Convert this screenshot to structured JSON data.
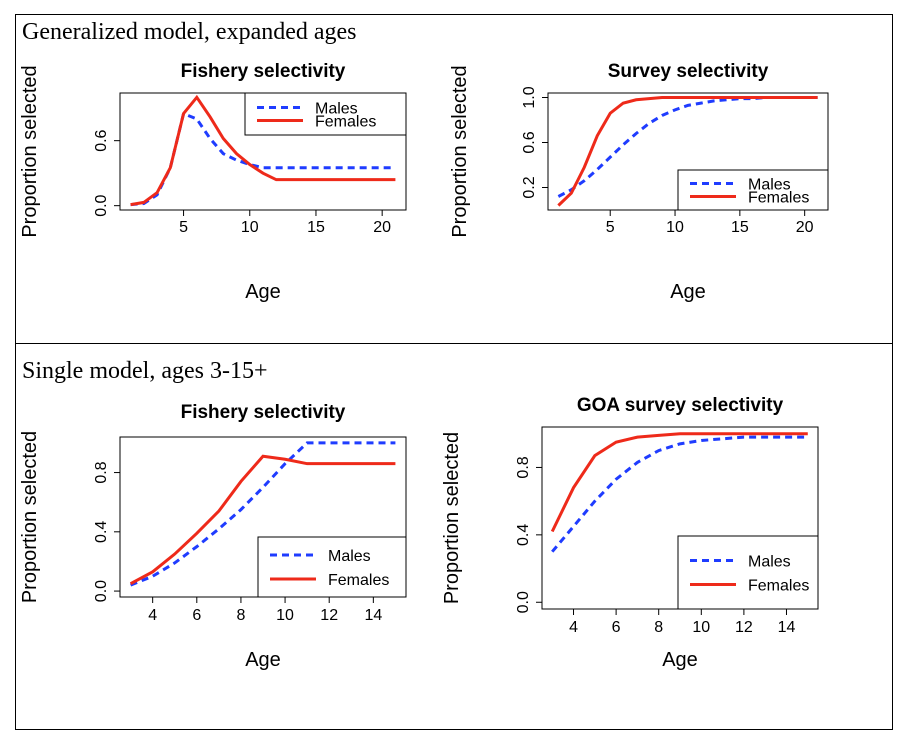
{
  "headings": [
    "Generalized model, expanded ages",
    "Single model, ages 3-15+"
  ],
  "chart_data": [
    {
      "type": "line",
      "title": "Fishery selectivity",
      "xlabel": "Age",
      "ylabel": "Proportion selected",
      "x": [
        1,
        2,
        3,
        4,
        5,
        6,
        7,
        8,
        9,
        10,
        11,
        12,
        13,
        14,
        15,
        16,
        17,
        18,
        19,
        20,
        21
      ],
      "series": [
        {
          "name": "Males",
          "color": "#1f3cff",
          "dashed": true,
          "values": [
            0.01,
            0.02,
            0.1,
            0.35,
            0.85,
            0.8,
            0.62,
            0.48,
            0.42,
            0.38,
            0.35,
            0.35,
            0.35,
            0.35,
            0.35,
            0.35,
            0.35,
            0.35,
            0.35,
            0.35,
            0.35
          ]
        },
        {
          "name": "Females",
          "color": "#ee2a1a",
          "dashed": false,
          "values": [
            0.01,
            0.03,
            0.12,
            0.35,
            0.85,
            1.0,
            0.82,
            0.62,
            0.48,
            0.38,
            0.3,
            0.24,
            0.24,
            0.24,
            0.24,
            0.24,
            0.24,
            0.24,
            0.24,
            0.24,
            0.24
          ]
        }
      ],
      "xlim": [
        0.2,
        21.8
      ],
      "xticks": [
        5,
        10,
        15,
        20
      ],
      "ylim": [
        -0.04,
        1.04
      ],
      "yticks": [
        {
          "value": 0,
          "label": "0.0"
        },
        0.6
      ],
      "legend": "topright"
    },
    {
      "type": "line",
      "title": "Survey selectivity",
      "xlabel": "Age",
      "ylabel": "Proportion selected",
      "x": [
        1,
        2,
        3,
        4,
        5,
        6,
        7,
        8,
        9,
        10,
        11,
        12,
        13,
        14,
        15,
        16,
        17,
        18,
        19,
        20,
        21
      ],
      "series": [
        {
          "name": "Males",
          "color": "#1f3cff",
          "dashed": true,
          "values": [
            0.12,
            0.18,
            0.26,
            0.36,
            0.47,
            0.58,
            0.68,
            0.77,
            0.84,
            0.89,
            0.93,
            0.95,
            0.97,
            0.98,
            0.99,
            0.99,
            1.0,
            1.0,
            1.0,
            1.0,
            1.0
          ]
        },
        {
          "name": "Females",
          "color": "#ee2a1a",
          "dashed": false,
          "values": [
            0.04,
            0.15,
            0.38,
            0.66,
            0.86,
            0.95,
            0.98,
            0.99,
            1.0,
            1.0,
            1.0,
            1.0,
            1.0,
            1.0,
            1.0,
            1.0,
            1.0,
            1.0,
            1.0,
            1.0,
            1.0
          ]
        }
      ],
      "xlim": [
        0.2,
        21.8
      ],
      "xticks": [
        5,
        10,
        15,
        20
      ],
      "ylim": [
        0.0,
        1.04
      ],
      "yticks": [
        0.2,
        0.6,
        {
          "value": 1,
          "label": "1.0"
        }
      ],
      "legend": "bottomright"
    },
    {
      "type": "line",
      "title": "Fishery selectivity",
      "xlabel": "Age",
      "ylabel": "Proportion selected",
      "x": [
        3,
        4,
        5,
        6,
        7,
        8,
        9,
        10,
        11,
        12,
        13,
        14,
        15
      ],
      "series": [
        {
          "name": "Males",
          "color": "#1f3cff",
          "dashed": true,
          "values": [
            0.04,
            0.1,
            0.19,
            0.3,
            0.42,
            0.55,
            0.7,
            0.86,
            1.0,
            1.0,
            1.0,
            1.0,
            1.0
          ]
        },
        {
          "name": "Females",
          "color": "#ee2a1a",
          "dashed": false,
          "values": [
            0.05,
            0.13,
            0.25,
            0.39,
            0.54,
            0.74,
            0.91,
            0.89,
            0.86,
            0.86,
            0.86,
            0.86,
            0.86
          ]
        }
      ],
      "xlim": [
        2.52,
        15.48
      ],
      "xticks": [
        4,
        6,
        8,
        10,
        12,
        14
      ],
      "ylim": [
        -0.04,
        1.04
      ],
      "yticks": [
        {
          "value": 0,
          "label": "0.0"
        },
        0.4,
        0.8
      ],
      "legend": "bottomright"
    },
    {
      "type": "line",
      "title": "GOA survey selectivity",
      "xlabel": "Age",
      "ylabel": "Proportion selected",
      "x": [
        3,
        4,
        5,
        6,
        7,
        8,
        9,
        10,
        11,
        12,
        13,
        14,
        15
      ],
      "series": [
        {
          "name": "Males",
          "color": "#1f3cff",
          "dashed": true,
          "values": [
            0.3,
            0.45,
            0.6,
            0.73,
            0.83,
            0.9,
            0.94,
            0.96,
            0.97,
            0.98,
            0.98,
            0.98,
            0.98
          ]
        },
        {
          "name": "Females",
          "color": "#ee2a1a",
          "dashed": false,
          "values": [
            0.42,
            0.68,
            0.87,
            0.95,
            0.98,
            0.99,
            1.0,
            1.0,
            1.0,
            1.0,
            1.0,
            1.0,
            1.0
          ]
        }
      ],
      "xlim": [
        2.52,
        15.48
      ],
      "xticks": [
        4,
        6,
        8,
        10,
        12,
        14
      ],
      "ylim": [
        -0.04,
        1.04
      ],
      "yticks": [
        {
          "value": 0,
          "label": "0.0"
        },
        0.4,
        0.8
      ],
      "legend": "bottomright"
    }
  ]
}
